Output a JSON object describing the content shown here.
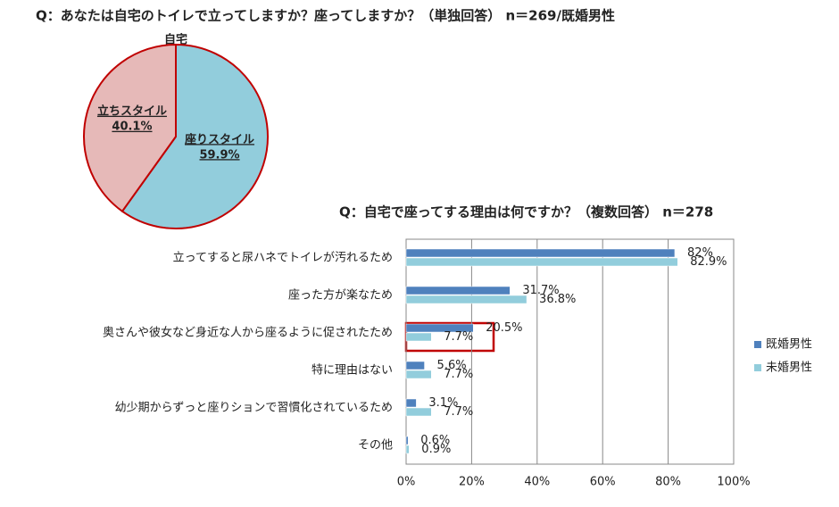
{
  "chart_data": [
    {
      "type": "pie",
      "title": "Q：あなたは自宅のトイレで立ってしますか？座ってしますか？（単独回答） n＝269/既婚男性",
      "subtitle": "自宅",
      "categories": [
        "座りスタイル",
        "立ちスタイル"
      ],
      "values": [
        59.9,
        40.1
      ],
      "value_labels": [
        "59.9%",
        "40.1%"
      ],
      "colors": [
        "#92cddc",
        "#e6b9b8"
      ],
      "edge_color": "#c00000"
    },
    {
      "type": "barh",
      "title": "Q：自宅で座ってする理由は何ですか？（複数回答） n＝278",
      "categories": [
        "立ってすると尿ハネでトイレが汚れるため",
        "座った方が楽なため",
        "奥さんや彼女など身近な人から座るように促されたため",
        "特に理由はない",
        "幼少期からずっと座りションで習慣化されているため",
        "その他"
      ],
      "series": [
        {
          "name": "既婚男性",
          "color": "#4f81bd",
          "values": [
            82,
            31.7,
            20.5,
            5.6,
            3.1,
            0.6
          ],
          "value_labels": [
            "82%",
            "31.7%",
            "20.5%",
            "5.6%",
            "3.1%",
            "0.6%"
          ]
        },
        {
          "name": "未婚男性",
          "color": "#92cddc",
          "values": [
            82.9,
            36.8,
            7.7,
            7.7,
            7.7,
            0.9
          ],
          "value_labels": [
            "82.9%",
            "36.8%",
            "7.7%",
            "7.7%",
            "7.7%",
            "0.9%"
          ]
        }
      ],
      "xlim": [
        0,
        100
      ],
      "xticks": [
        {
          "value": 0,
          "label": "0%"
        },
        {
          "value": 20,
          "label": "20%"
        },
        {
          "value": 40,
          "label": "40%"
        },
        {
          "value": 60,
          "label": "60%"
        },
        {
          "value": 80,
          "label": "80%"
        },
        {
          "value": 100,
          "label": "100%"
        }
      ],
      "grid": true,
      "legend": "right"
    }
  ]
}
